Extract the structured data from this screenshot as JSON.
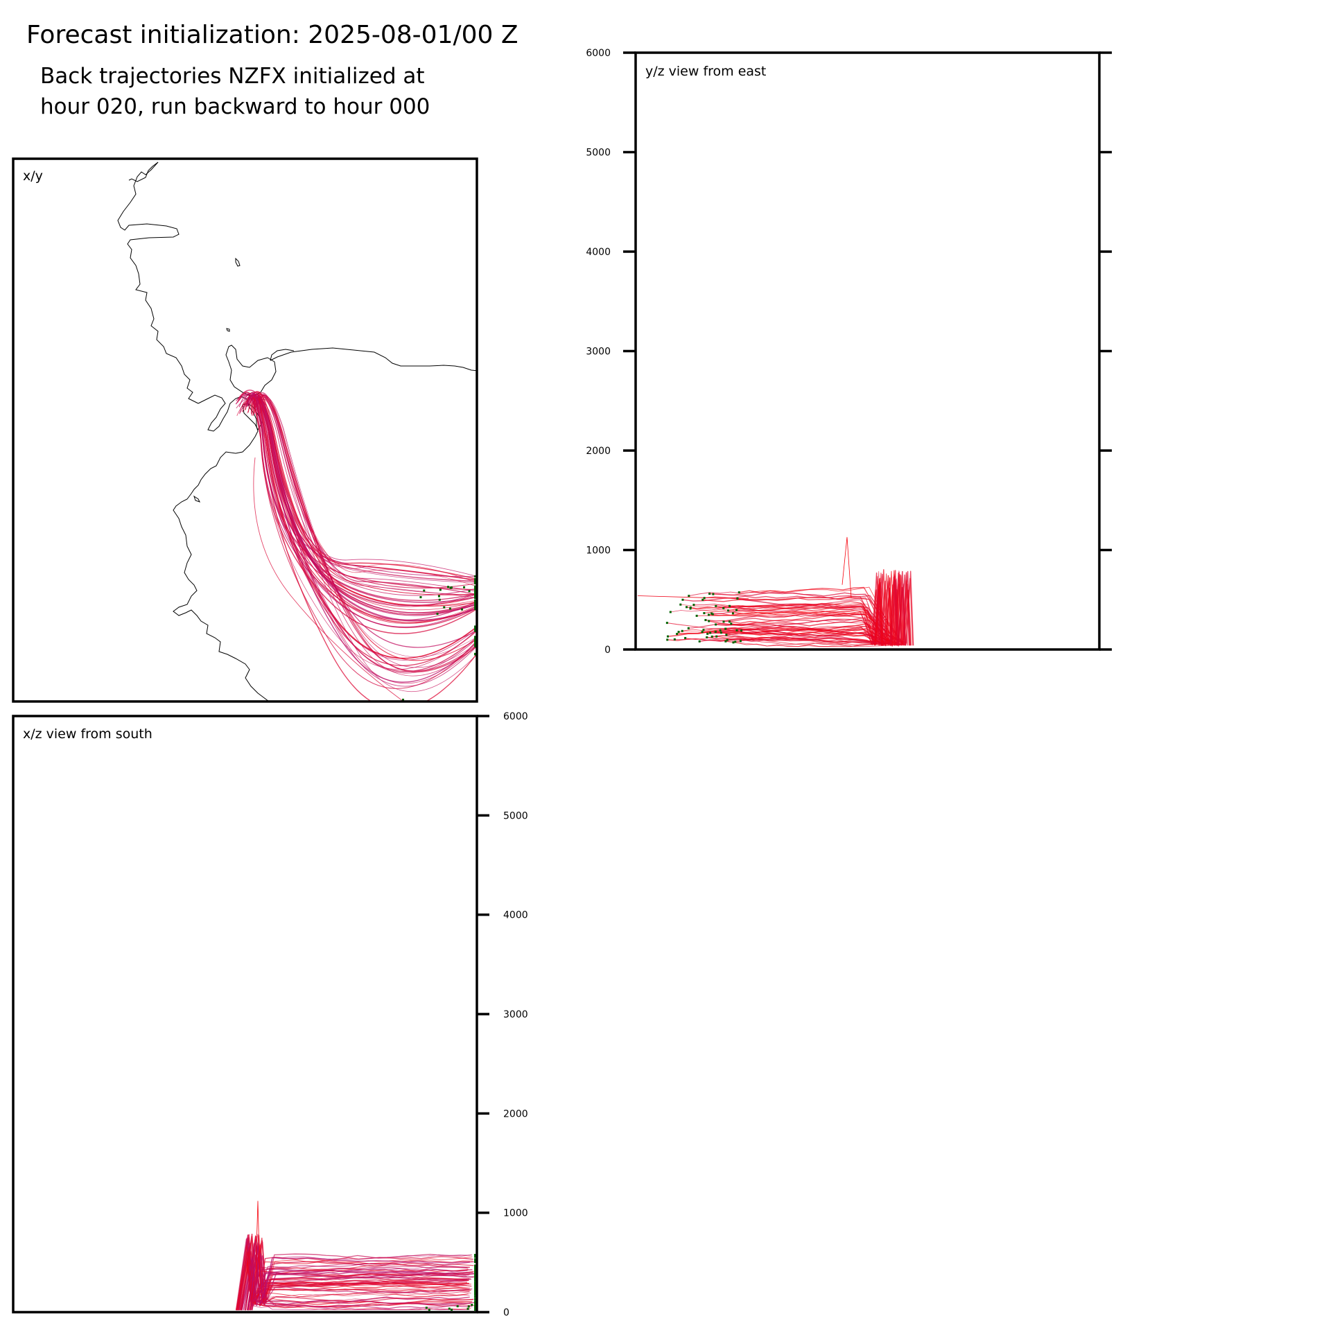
{
  "header": {
    "title": "Forecast initialization: 2025-08-01/00 Z",
    "subtitle_line1": "Back trajectories NZFX initialized at",
    "subtitle_line2": "hour 020, run backward to hour 000"
  },
  "colors": {
    "trajectory_start": "#ff0000",
    "trajectory_end": "#b0107a",
    "endpoint_marker": "#006400",
    "coastline": "#000000",
    "frame": "#000000"
  },
  "chart_data": [
    {
      "type": "line",
      "panel": "x/y",
      "title": "x/y",
      "description_of_marks": "map of back-trajectory paths with coastline",
      "n_trajectories": 60,
      "legend": "none",
      "grid": false
    },
    {
      "type": "line",
      "panel": "y/z",
      "title": "y/z view from east",
      "ylabel": "",
      "ylim": [
        0,
        6000
      ],
      "yticks": [
        0,
        1000,
        2000,
        3000,
        4000,
        5000,
        6000
      ],
      "ytick_labels": [
        "0",
        "1000",
        "2000",
        "3000",
        "4000",
        "5000",
        "6000"
      ],
      "ytick_side": "left",
      "grid": false,
      "series_summary": {
        "height_range_m": [
          40,
          1130
        ],
        "spike_max_m": 1130
      }
    },
    {
      "type": "line",
      "panel": "x/z",
      "title": "x/z view from south",
      "ylabel": "",
      "ylim": [
        0,
        6000
      ],
      "yticks": [
        0,
        1000,
        2000,
        3000,
        4000,
        5000,
        6000
      ],
      "ytick_labels": [
        "0",
        "1000",
        "2000",
        "3000",
        "4000",
        "5000",
        "6000"
      ],
      "ytick_side": "right",
      "grid": false,
      "series_summary": {
        "height_range_m": [
          20,
          1120
        ],
        "spike_max_m": 1120
      }
    }
  ]
}
